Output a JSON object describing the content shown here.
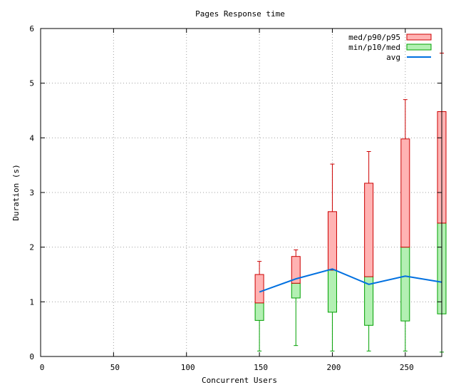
{
  "chart_data": {
    "type": "box",
    "title": "Pages Response time",
    "xlabel": "Concurrent Users",
    "ylabel": "Duration (s)",
    "xlim": [
      0,
      275
    ],
    "ylim": [
      0,
      6
    ],
    "xticks": [
      0,
      50,
      100,
      150,
      200,
      250
    ],
    "yticks": [
      0,
      1,
      2,
      3,
      4,
      5,
      6
    ],
    "grid": true,
    "legend_position": "top-right",
    "legend": [
      {
        "label": "med/p90/p95",
        "color": "#ffb3b3",
        "stroke": "#cc0000"
      },
      {
        "label": "min/p10/med",
        "color": "#b3f0b3",
        "stroke": "#00a000"
      },
      {
        "label": "avg",
        "color": "#0070e0"
      }
    ],
    "series": [
      {
        "x": 150,
        "min": 0.1,
        "p10": 0.66,
        "med": 0.98,
        "p90": 1.5,
        "p95": 1.74,
        "avg": 1.18
      },
      {
        "x": 175,
        "min": 0.2,
        "p10": 1.07,
        "med": 1.34,
        "p90": 1.83,
        "p95": 1.95,
        "avg": 1.42
      },
      {
        "x": 200,
        "min": 0.1,
        "p10": 0.81,
        "med": 1.58,
        "p90": 2.65,
        "p95": 3.52,
        "avg": 1.6
      },
      {
        "x": 225,
        "min": 0.1,
        "p10": 0.57,
        "med": 1.46,
        "p90": 3.17,
        "p95": 3.75,
        "avg": 1.32
      },
      {
        "x": 250,
        "min": 0.1,
        "p10": 0.65,
        "med": 2.0,
        "p90": 3.98,
        "p95": 4.7,
        "avg": 1.47
      },
      {
        "x": 275,
        "min": 0.08,
        "p10": 0.78,
        "med": 2.44,
        "p90": 4.48,
        "p95": 5.55,
        "avg": 1.36
      }
    ]
  }
}
